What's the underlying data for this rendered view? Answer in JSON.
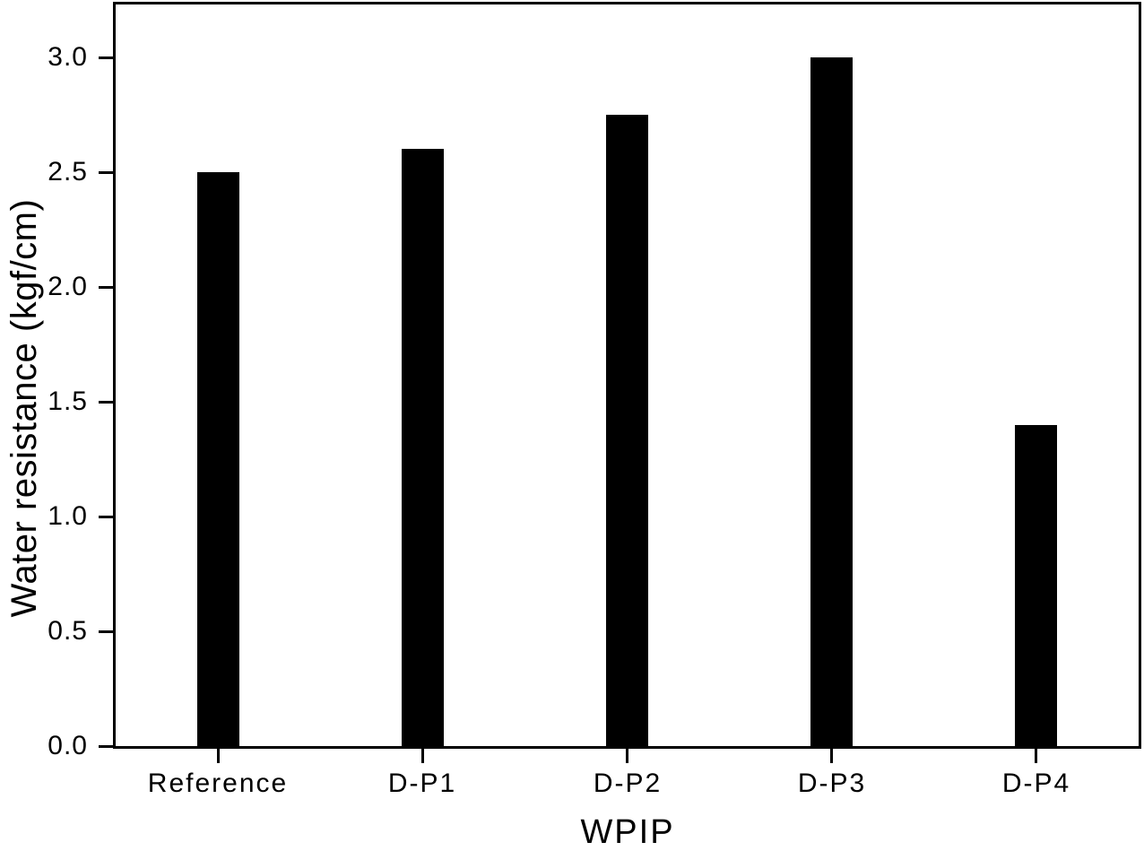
{
  "chart_data": {
    "type": "bar",
    "title": "",
    "categories": [
      "Reference",
      "D-P1",
      "D-P2",
      "D-P3",
      "D-P4"
    ],
    "values": [
      2.5,
      2.6,
      2.75,
      3.0,
      1.4
    ],
    "series": [
      {
        "name": "Water resistance",
        "values": [
          2.5,
          2.6,
          2.75,
          3.0,
          1.4
        ]
      }
    ],
    "xlabel": "WPIP",
    "ylabel": "Water resistance (kgf/cm)",
    "ylim": [
      0,
      3.23
    ],
    "yticks": [
      0.0,
      0.5,
      1.0,
      1.5,
      2.0,
      2.5,
      3.0
    ],
    "ytick_labels": [
      "0.0",
      "0.5",
      "1.0",
      "1.5",
      "2.0",
      "2.5",
      "3.0"
    ],
    "bar_color": "#000000",
    "axis_color": "#000000",
    "background": "#ffffff",
    "grid": false,
    "legend": null
  }
}
